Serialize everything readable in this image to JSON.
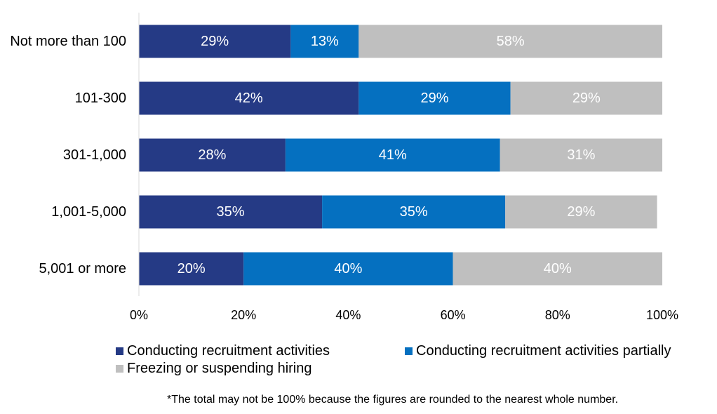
{
  "chart_data": {
    "type": "bar",
    "orientation": "horizontal",
    "stacked": true,
    "categories": [
      "Not more than 100",
      "101-300",
      "301-1,000",
      "1,001-5,000",
      "5,001 or more"
    ],
    "series": [
      {
        "name": "Conducting recruitment activities",
        "color": "#253a85",
        "values": [
          29,
          42,
          28,
          35,
          20
        ]
      },
      {
        "name": "Conducting recruitment activities partially",
        "color": "#0570c0",
        "values": [
          13,
          29,
          41,
          35,
          40
        ]
      },
      {
        "name": "Freezing or suspending hiring",
        "color": "#bfbfbf",
        "values": [
          58,
          29,
          31,
          29,
          40
        ]
      }
    ],
    "xlim": [
      0,
      100
    ],
    "xticks": [
      0,
      20,
      40,
      60,
      80,
      100
    ],
    "value_suffix": "%",
    "grid": false,
    "legend_position": "bottom"
  },
  "footnote": "*The total may not be 100% because the figures are rounded to the nearest whole number."
}
